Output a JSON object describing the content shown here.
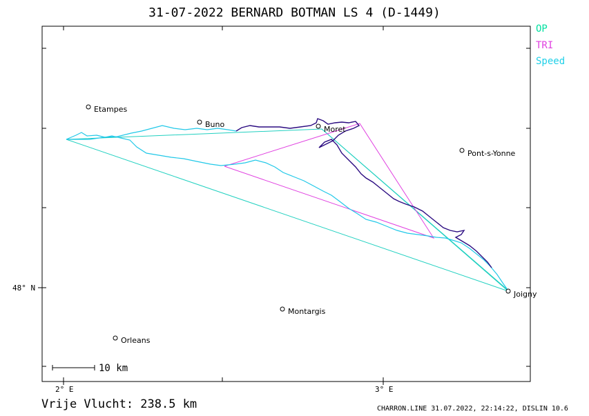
{
  "header": {
    "title": "31-07-2022   BERNARD BOTMAN   LS 4 (D-1449)"
  },
  "legend": {
    "op": "OP",
    "tri": "TRI",
    "speed": "Speed"
  },
  "colors": {
    "op": "#00e0a0",
    "tri": "#e040e0",
    "speed": "#20d0e8",
    "track_dark": "#2a0a80",
    "track_light": "#20c8e8"
  },
  "axes": {
    "lat_label": "48° N",
    "lon_labels": [
      "2° E",
      "3° E"
    ]
  },
  "places": [
    {
      "name": "Etampes"
    },
    {
      "name": "Buno"
    },
    {
      "name": "Moret"
    },
    {
      "name": "Pont-s-Yonne"
    },
    {
      "name": "Joigny"
    },
    {
      "name": "Montargis"
    },
    {
      "name": "Orleans"
    }
  ],
  "scale": {
    "label": "10 km"
  },
  "footer": {
    "distance": "Vrije Vlucht:  238.5 km",
    "credit": "CHARRON.LINE 31.07.2022, 22:14:22, DISLIN 10.6"
  }
}
